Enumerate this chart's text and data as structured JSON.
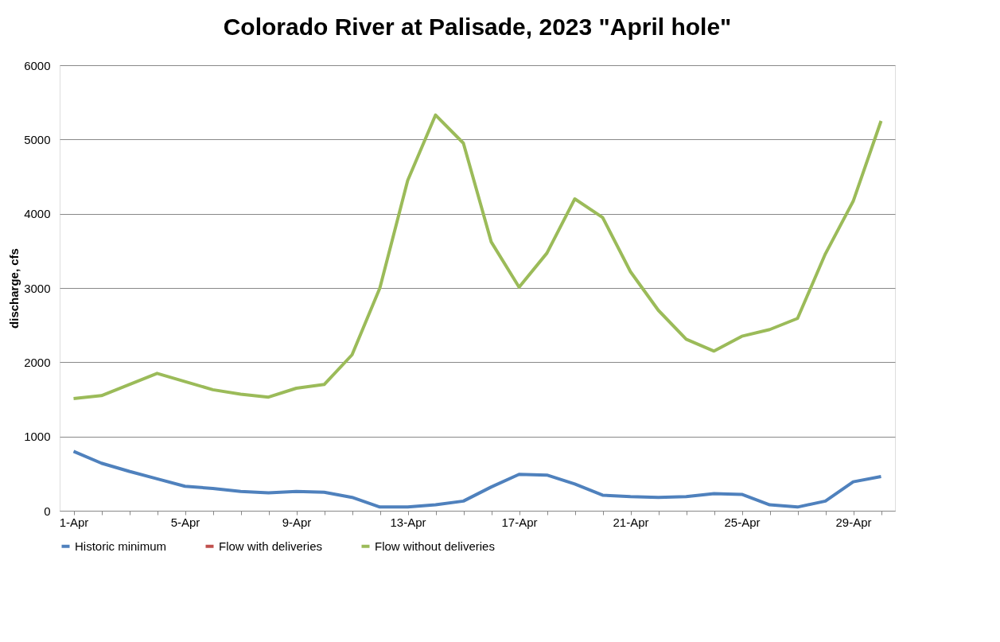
{
  "chart_data": {
    "type": "line",
    "title": "Colorado River at Palisade, 2023 \"April hole\"",
    "ylabel": "discharge, cfs",
    "categories": [
      "1-Apr",
      null,
      null,
      null,
      "5-Apr",
      null,
      null,
      null,
      "9-Apr",
      null,
      null,
      null,
      "13-Apr",
      null,
      null,
      null,
      "17-Apr",
      null,
      null,
      null,
      "21-Apr",
      null,
      null,
      null,
      "25-Apr",
      null,
      null,
      null,
      "29-Apr",
      null
    ],
    "series": [
      {
        "name": "Historic minimum",
        "color": "#4f81bd",
        "values": [
          800,
          640,
          530,
          430,
          330,
          300,
          260,
          240,
          260,
          250,
          180,
          50,
          50,
          80,
          130,
          320,
          490,
          480,
          360,
          210,
          190,
          180,
          190,
          230,
          220,
          80,
          50,
          130,
          390,
          460
        ]
      },
      {
        "name": "Flow with deliveries",
        "color": "#c0504d",
        "values": [
          null,
          null,
          null,
          null,
          null,
          null,
          null,
          null,
          null,
          null,
          null,
          null,
          null,
          null,
          null,
          null,
          null,
          null,
          null,
          null,
          null,
          null,
          null,
          null,
          null,
          null,
          null,
          null,
          null,
          null
        ]
      },
      {
        "name": "Flow without deliveries",
        "color": "#9bbb59",
        "values": [
          1510,
          1550,
          1700,
          1850,
          1740,
          1630,
          1570,
          1530,
          1650,
          1700,
          2100,
          3000,
          4450,
          5330,
          4950,
          3620,
          3010,
          3470,
          4200,
          3950,
          3220,
          2700,
          2310,
          2150,
          2350,
          2440,
          2590,
          3460,
          4170,
          5250
        ]
      }
    ],
    "ylim": [
      0,
      6000
    ],
    "yticks": [
      0,
      1000,
      2000,
      3000,
      4000,
      5000,
      6000
    ],
    "grid": "y",
    "legend": "bottom",
    "marker": "none",
    "line_style": "solid"
  }
}
